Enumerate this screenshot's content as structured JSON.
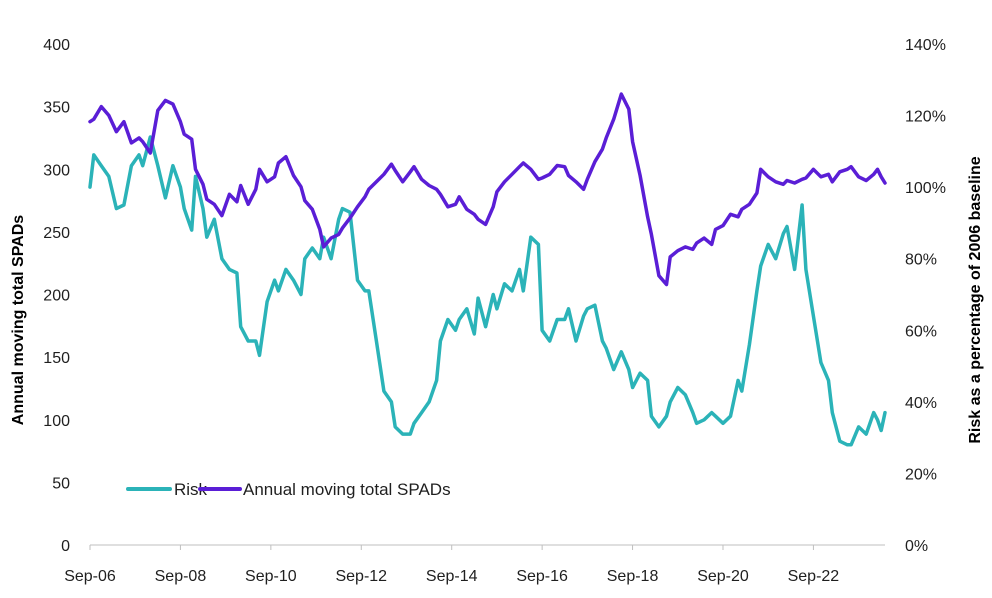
{
  "chart_data": {
    "type": "line",
    "title": "",
    "x_tick_labels": [
      "Sep-06",
      "Sep-08",
      "Sep-10",
      "Sep-12",
      "Sep-14",
      "Sep-16",
      "Sep-18",
      "Sep-20",
      "Sep-22"
    ],
    "x_start": "Sep-06",
    "x_end": "Apr-24",
    "y_left": {
      "label": "Annual moving total SPADs",
      "range": [
        0,
        400
      ],
      "tick_labels": [
        "0",
        "50",
        "100",
        "150",
        "200",
        "250",
        "300",
        "350",
        "400"
      ]
    },
    "y_right": {
      "label": "Risk as a percentage of 2006 baseline",
      "range": [
        0,
        140
      ],
      "unit": "%",
      "tick_labels": [
        "0%",
        "20%",
        "40%",
        "60%",
        "80%",
        "100%",
        "120%",
        "140%"
      ]
    },
    "grid": false,
    "legend": {
      "position": "bottom-left",
      "items": [
        "Risk",
        "Annual moving total SPADs"
      ]
    },
    "series": [
      {
        "name": "Risk",
        "axis": "right",
        "color": "#2bb3b8",
        "points": [
          [
            "Sep-06",
            100
          ],
          [
            "Oct-06",
            109
          ],
          [
            "Dec-06",
            106
          ],
          [
            "Feb-07",
            103
          ],
          [
            "Apr-07",
            94
          ],
          [
            "Jun-07",
            95
          ],
          [
            "Aug-07",
            106
          ],
          [
            "Oct-07",
            109
          ],
          [
            "Nov-07",
            106
          ],
          [
            "Jan-08",
            114
          ],
          [
            "Mar-08",
            106
          ],
          [
            "May-08",
            97
          ],
          [
            "Jul-08",
            106
          ],
          [
            "Sep-08",
            100
          ],
          [
            "Oct-08",
            94
          ],
          [
            "Dec-08",
            88
          ],
          [
            "Jan-09",
            103
          ],
          [
            "Mar-09",
            94
          ],
          [
            "Apr-09",
            86
          ],
          [
            "Jun-09",
            91
          ],
          [
            "Aug-09",
            80
          ],
          [
            "Oct-09",
            77
          ],
          [
            "Dec-09",
            76
          ],
          [
            "Jan-10",
            61
          ],
          [
            "Mar-10",
            57
          ],
          [
            "May-10",
            57
          ],
          [
            "Jun-10",
            53
          ],
          [
            "Aug-10",
            68
          ],
          [
            "Oct-10",
            74
          ],
          [
            "Nov-10",
            71
          ],
          [
            "Jan-11",
            77
          ],
          [
            "Mar-11",
            74
          ],
          [
            "May-11",
            70
          ],
          [
            "Jun-11",
            80
          ],
          [
            "Aug-11",
            83
          ],
          [
            "Oct-11",
            80
          ],
          [
            "Nov-11",
            86
          ],
          [
            "Jan-12",
            80
          ],
          [
            "Mar-12",
            91
          ],
          [
            "Apr-12",
            94
          ],
          [
            "Jun-12",
            93
          ],
          [
            "Aug-12",
            74
          ],
          [
            "Oct-12",
            71
          ],
          [
            "Nov-12",
            71
          ],
          [
            "Jan-13",
            57
          ],
          [
            "Mar-13",
            43
          ],
          [
            "May-13",
            40
          ],
          [
            "Jun-13",
            33
          ],
          [
            "Aug-13",
            31
          ],
          [
            "Oct-13",
            31
          ],
          [
            "Nov-13",
            34
          ],
          [
            "Jan-14",
            37
          ],
          [
            "Mar-14",
            40
          ],
          [
            "May-14",
            46
          ],
          [
            "Jun-14",
            57
          ],
          [
            "Aug-14",
            63
          ],
          [
            "Oct-14",
            60
          ],
          [
            "Nov-14",
            63
          ],
          [
            "Jan-15",
            66
          ],
          [
            "Mar-15",
            59
          ],
          [
            "Apr-15",
            69
          ],
          [
            "Jun-15",
            61
          ],
          [
            "Aug-15",
            70
          ],
          [
            "Sep-15",
            66
          ],
          [
            "Nov-15",
            73
          ],
          [
            "Jan-16",
            71
          ],
          [
            "Mar-16",
            77
          ],
          [
            "Apr-16",
            71
          ],
          [
            "Jun-16",
            86
          ],
          [
            "Aug-16",
            84
          ],
          [
            "Sep-16",
            60
          ],
          [
            "Nov-16",
            57
          ],
          [
            "Jan-17",
            63
          ],
          [
            "Mar-17",
            63
          ],
          [
            "Apr-17",
            66
          ],
          [
            "Jun-17",
            57
          ],
          [
            "Aug-17",
            64
          ],
          [
            "Sep-17",
            66
          ],
          [
            "Nov-17",
            67
          ],
          [
            "Jan-18",
            57
          ],
          [
            "Feb-18",
            55
          ],
          [
            "Apr-18",
            49
          ],
          [
            "Jun-18",
            54
          ],
          [
            "Aug-18",
            49
          ],
          [
            "Sep-18",
            44
          ],
          [
            "Nov-18",
            48
          ],
          [
            "Jan-19",
            46
          ],
          [
            "Feb-19",
            36
          ],
          [
            "Apr-19",
            33
          ],
          [
            "Jun-19",
            36
          ],
          [
            "Jul-19",
            40
          ],
          [
            "Sep-19",
            44
          ],
          [
            "Nov-19",
            42
          ],
          [
            "Jan-20",
            37
          ],
          [
            "Feb-20",
            34
          ],
          [
            "Apr-20",
            35
          ],
          [
            "Jun-20",
            37
          ],
          [
            "Jul-20",
            36
          ],
          [
            "Sep-20",
            34
          ],
          [
            "Nov-20",
            36
          ],
          [
            "Jan-21",
            46
          ],
          [
            "Feb-21",
            43
          ],
          [
            "Apr-21",
            56
          ],
          [
            "Jun-21",
            71
          ],
          [
            "Jul-21",
            78
          ],
          [
            "Sep-21",
            84
          ],
          [
            "Nov-21",
            80
          ],
          [
            "Jan-22",
            87
          ],
          [
            "Feb-22",
            89
          ],
          [
            "Apr-22",
            77
          ],
          [
            "Jun-22",
            95
          ],
          [
            "Jul-22",
            77
          ],
          [
            "Sep-22",
            64
          ],
          [
            "Nov-22",
            51
          ],
          [
            "Jan-23",
            46
          ],
          [
            "Feb-23",
            37
          ],
          [
            "Apr-23",
            29
          ],
          [
            "Jun-23",
            28
          ],
          [
            "Jul-23",
            28
          ],
          [
            "Sep-23",
            33
          ],
          [
            "Nov-23",
            31
          ],
          [
            "Jan-24",
            37
          ],
          [
            "Feb-24",
            35
          ],
          [
            "Mar-24",
            32
          ],
          [
            "Apr-24",
            37
          ]
        ]
      },
      {
        "name": "Annual moving total SPADs",
        "axis": "left",
        "color": "#5a1ed6",
        "points": [
          [
            "Sep-06",
            338
          ],
          [
            "Oct-06",
            340
          ],
          [
            "Dec-06",
            350
          ],
          [
            "Feb-07",
            343
          ],
          [
            "Apr-07",
            330
          ],
          [
            "Jun-07",
            338
          ],
          [
            "Aug-07",
            321
          ],
          [
            "Oct-07",
            325
          ],
          [
            "Nov-07",
            322
          ],
          [
            "Jan-08",
            313
          ],
          [
            "Mar-08",
            347
          ],
          [
            "May-08",
            355
          ],
          [
            "Jul-08",
            352
          ],
          [
            "Sep-08",
            338
          ],
          [
            "Oct-08",
            328
          ],
          [
            "Dec-08",
            324
          ],
          [
            "Jan-09",
            300
          ],
          [
            "Mar-09",
            288
          ],
          [
            "Apr-09",
            276
          ],
          [
            "Jun-09",
            272
          ],
          [
            "Aug-09",
            263
          ],
          [
            "Oct-09",
            280
          ],
          [
            "Dec-09",
            274
          ],
          [
            "Jan-10",
            287
          ],
          [
            "Mar-10",
            272
          ],
          [
            "May-10",
            284
          ],
          [
            "Jun-10",
            300
          ],
          [
            "Aug-10",
            290
          ],
          [
            "Oct-10",
            294
          ],
          [
            "Nov-10",
            305
          ],
          [
            "Jan-11",
            310
          ],
          [
            "Mar-11",
            295
          ],
          [
            "May-11",
            286
          ],
          [
            "Jun-11",
            275
          ],
          [
            "Aug-11",
            268
          ],
          [
            "Oct-11",
            252
          ],
          [
            "Nov-11",
            238
          ],
          [
            "Jan-12",
            245
          ],
          [
            "Mar-12",
            248
          ],
          [
            "Apr-12",
            253
          ],
          [
            "Jun-12",
            261
          ],
          [
            "Aug-12",
            270
          ],
          [
            "Oct-12",
            278
          ],
          [
            "Nov-12",
            284
          ],
          [
            "Jan-13",
            290
          ],
          [
            "Mar-13",
            296
          ],
          [
            "May-13",
            304
          ],
          [
            "Jun-13",
            299
          ],
          [
            "Aug-13",
            290
          ],
          [
            "Oct-13",
            298
          ],
          [
            "Nov-13",
            302
          ],
          [
            "Jan-14",
            292
          ],
          [
            "Mar-14",
            287
          ],
          [
            "May-14",
            284
          ],
          [
            "Jun-14",
            280
          ],
          [
            "Aug-14",
            270
          ],
          [
            "Oct-14",
            272
          ],
          [
            "Nov-14",
            278
          ],
          [
            "Jan-15",
            268
          ],
          [
            "Mar-15",
            264
          ],
          [
            "Apr-15",
            260
          ],
          [
            "Jun-15",
            256
          ],
          [
            "Aug-15",
            270
          ],
          [
            "Sep-15",
            282
          ],
          [
            "Nov-15",
            290
          ],
          [
            "Jan-16",
            296
          ],
          [
            "Mar-16",
            302
          ],
          [
            "Apr-16",
            305
          ],
          [
            "Jun-16",
            300
          ],
          [
            "Aug-16",
            292
          ],
          [
            "Sep-16",
            293
          ],
          [
            "Nov-16",
            296
          ],
          [
            "Jan-17",
            303
          ],
          [
            "Mar-17",
            302
          ],
          [
            "Apr-17",
            295
          ],
          [
            "Jun-17",
            290
          ],
          [
            "Aug-17",
            284
          ],
          [
            "Sep-17",
            292
          ],
          [
            "Nov-17",
            306
          ],
          [
            "Jan-18",
            316
          ],
          [
            "Feb-18",
            325
          ],
          [
            "Apr-18",
            340
          ],
          [
            "Jun-18",
            360
          ],
          [
            "Aug-18",
            348
          ],
          [
            "Sep-18",
            322
          ],
          [
            "Nov-18",
            295
          ],
          [
            "Jan-19",
            262
          ],
          [
            "Feb-19",
            248
          ],
          [
            "Apr-19",
            215
          ],
          [
            "Jun-19",
            208
          ],
          [
            "Jul-19",
            230
          ],
          [
            "Sep-19",
            235
          ],
          [
            "Nov-19",
            238
          ],
          [
            "Jan-20",
            236
          ],
          [
            "Feb-20",
            241
          ],
          [
            "Apr-20",
            245
          ],
          [
            "Jun-20",
            240
          ],
          [
            "Jul-20",
            252
          ],
          [
            "Sep-20",
            255
          ],
          [
            "Nov-20",
            264
          ],
          [
            "Jan-21",
            262
          ],
          [
            "Feb-21",
            268
          ],
          [
            "Apr-21",
            272
          ],
          [
            "Jun-21",
            281
          ],
          [
            "Jul-21",
            300
          ],
          [
            "Sep-21",
            294
          ],
          [
            "Nov-21",
            290
          ],
          [
            "Jan-22",
            288
          ],
          [
            "Feb-22",
            291
          ],
          [
            "Apr-22",
            289
          ],
          [
            "Jun-22",
            292
          ],
          [
            "Jul-22",
            293
          ],
          [
            "Sep-22",
            300
          ],
          [
            "Nov-22",
            294
          ],
          [
            "Jan-23",
            296
          ],
          [
            "Feb-23",
            290
          ],
          [
            "Apr-23",
            298
          ],
          [
            "Jun-23",
            300
          ],
          [
            "Jul-23",
            302
          ],
          [
            "Sep-23",
            294
          ],
          [
            "Nov-23",
            291
          ],
          [
            "Jan-24",
            296
          ],
          [
            "Feb-24",
            300
          ],
          [
            "Mar-24",
            294
          ],
          [
            "Apr-24",
            289
          ]
        ]
      }
    ]
  }
}
